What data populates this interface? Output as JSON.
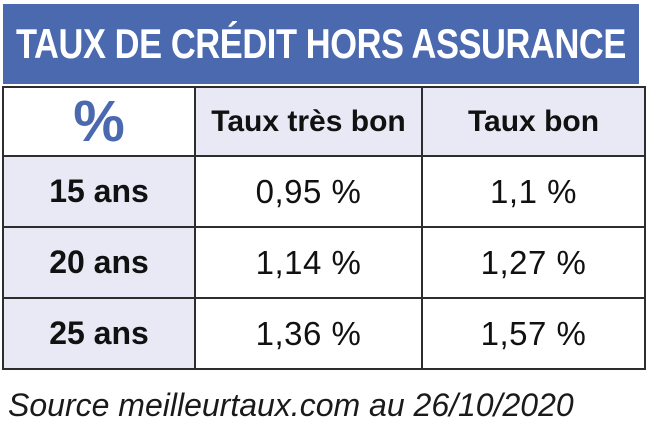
{
  "banner": {
    "title": "TAUX DE CRÉDIT HORS ASSURANCE",
    "bg_color": "#4a69ae",
    "text_color": "#ffffff"
  },
  "table": {
    "header": {
      "col1": "%",
      "col2": "Taux très bon",
      "col3": "Taux bon"
    },
    "rows": [
      {
        "label": "15 ans",
        "taux_tres_bon": "0,95 %",
        "taux_bon": "1,1 %"
      },
      {
        "label": "20 ans",
        "taux_tres_bon": "1,14 %",
        "taux_bon": "1,27 %"
      },
      {
        "label": "25 ans",
        "taux_tres_bon": "1,36 %",
        "taux_bon": "1,57 %"
      }
    ],
    "colors": {
      "header_bg": "#e8e9f4",
      "label_bg": "#e8e9f4",
      "cell_bg": "#ffffff",
      "border": "#2d2d2d",
      "percent_symbol": "#4a69ae"
    }
  },
  "source": {
    "text": "Source meilleurtaux.com au 26/10/2020"
  },
  "chart_data": {
    "type": "table",
    "title": "TAUX DE CRÉDIT HORS ASSURANCE",
    "columns": [
      "%",
      "Taux très bon",
      "Taux bon"
    ],
    "rows": [
      [
        "15 ans",
        "0,95 %",
        "1,1 %"
      ],
      [
        "20 ans",
        "1,14 %",
        "1,27 %"
      ],
      [
        "25 ans",
        "1,36 %",
        "1,57 %"
      ]
    ],
    "values_numeric": {
      "taux_tres_bon_pct": [
        0.95,
        1.14,
        1.36
      ],
      "taux_bon_pct": [
        1.1,
        1.27,
        1.57
      ],
      "durations_years": [
        15,
        20,
        25
      ]
    },
    "source": "Source meilleurtaux.com au 26/10/2020"
  }
}
